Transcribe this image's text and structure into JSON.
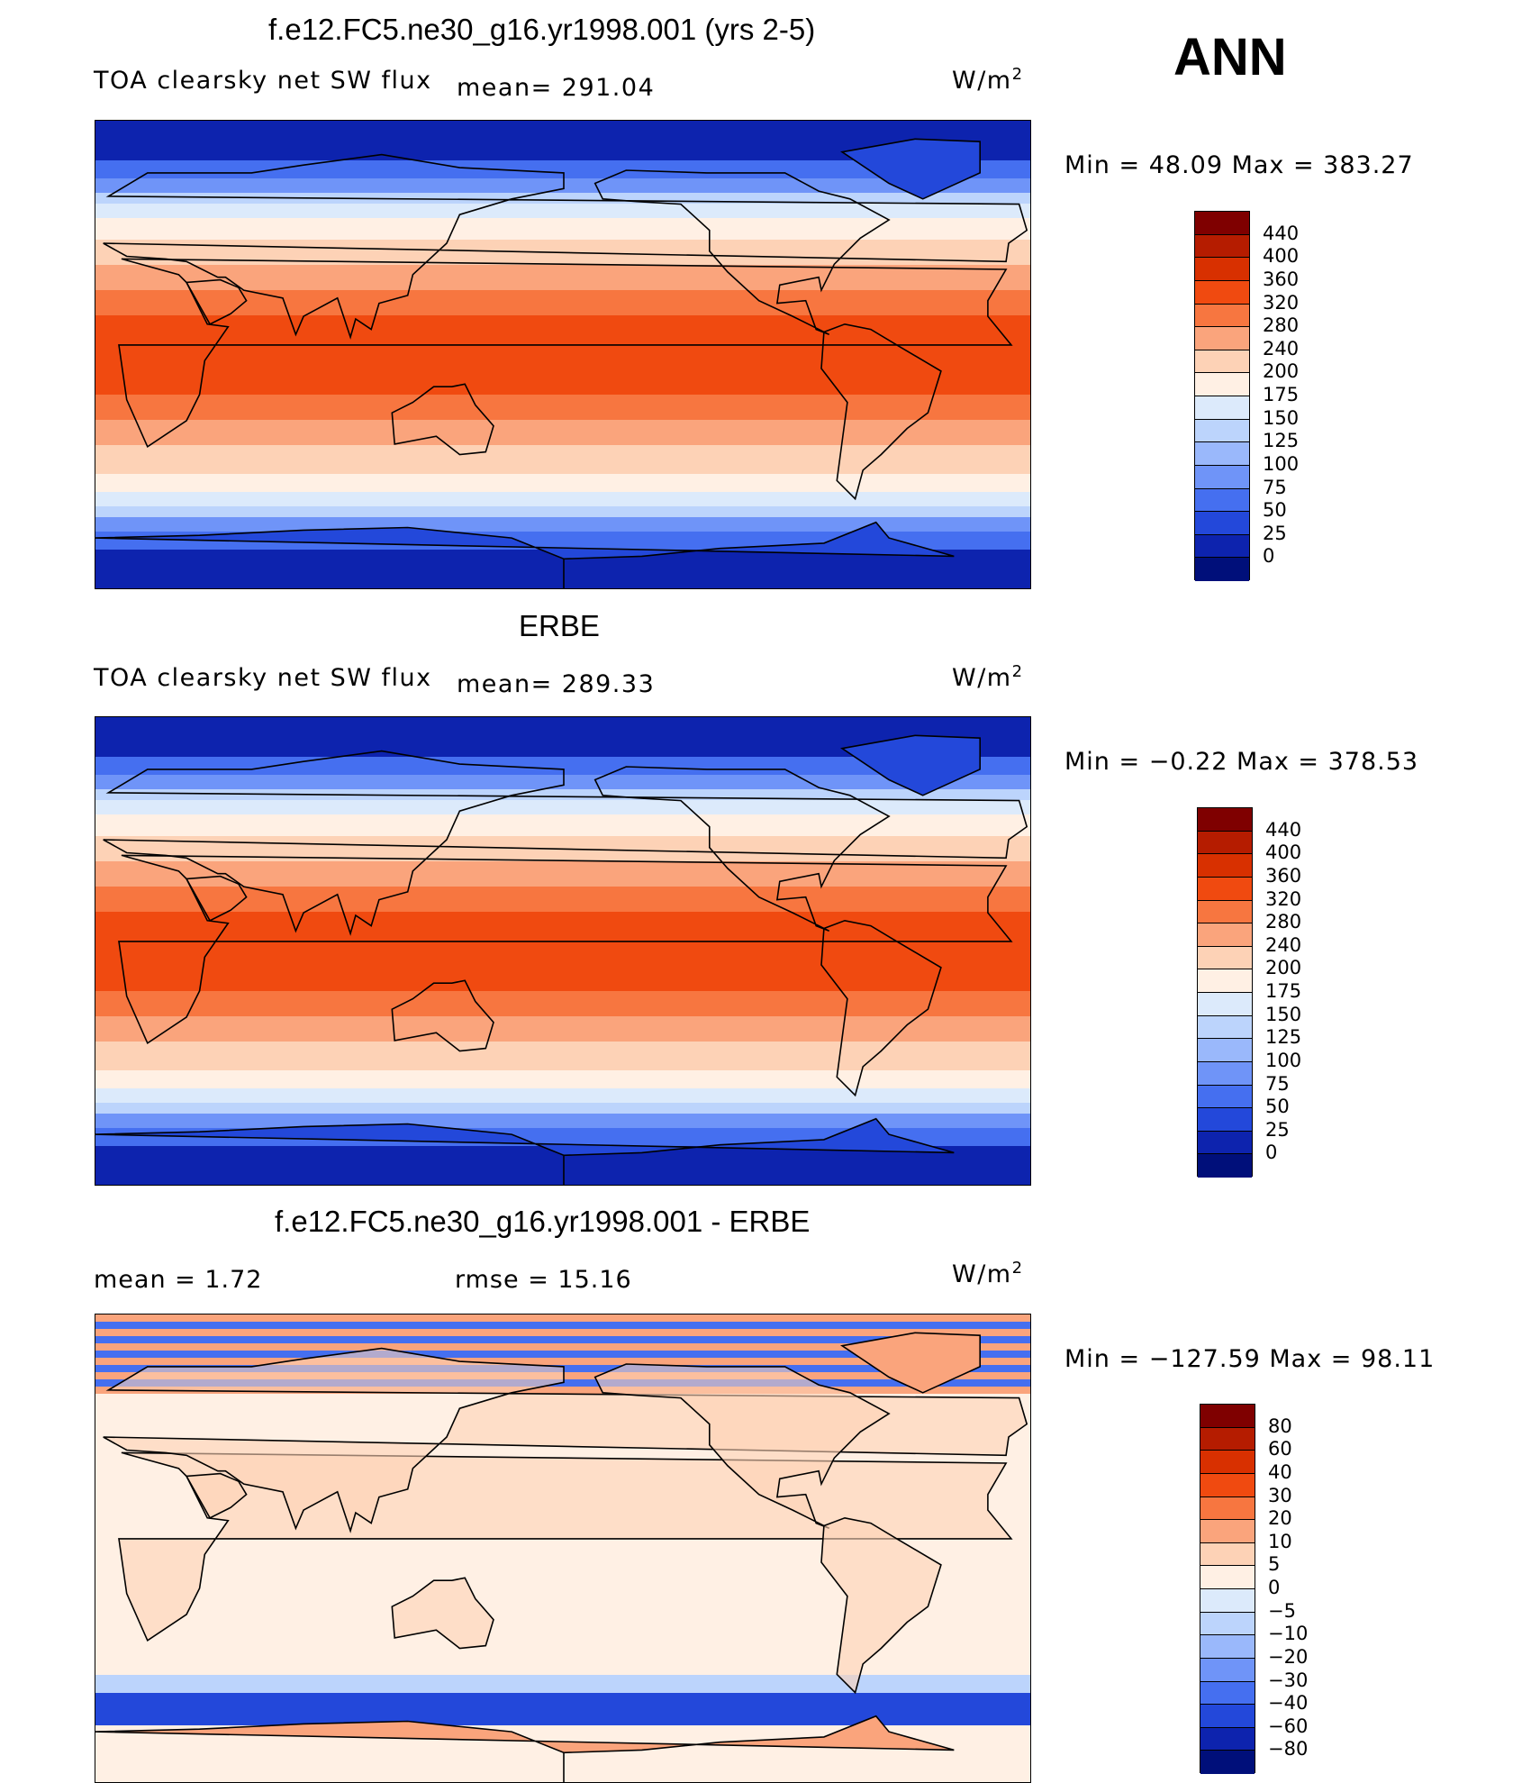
{
  "season": "ANN",
  "units": "W/m",
  "units_sup": "2",
  "panels": [
    {
      "title": "f.e12.FC5.ne30_g16.yr1998.001 (yrs 2-5)",
      "left_label": "TOA clearsky net SW flux",
      "mean_label": "mean= 291.04",
      "minmax": "Min =   48.09 Max = 383.27",
      "colorbar": {
        "labels": [
          "440",
          "400",
          "360",
          "320",
          "280",
          "240",
          "200",
          "175",
          "150",
          "125",
          "100",
          "75",
          "50",
          "25",
          "0"
        ],
        "colors": [
          "#7f0000",
          "#b51c00",
          "#d83000",
          "#f04a10",
          "#f77640",
          "#faa47c",
          "#fdd2b6",
          "#fff0e4",
          "#dceafb",
          "#bcd4fc",
          "#9ab8fb",
          "#6f94f8",
          "#456ff0",
          "#2348da",
          "#0d23ae",
          "#000f7a"
        ]
      },
      "field": "model"
    },
    {
      "title": "ERBE",
      "left_label": "TOA clearsky net SW flux",
      "mean_label": "mean= 289.33",
      "minmax": "Min =  −0.22 Max = 378.53",
      "colorbar": {
        "labels": [
          "440",
          "400",
          "360",
          "320",
          "280",
          "240",
          "200",
          "175",
          "150",
          "125",
          "100",
          "75",
          "50",
          "25",
          "0"
        ],
        "colors": [
          "#7f0000",
          "#b51c00",
          "#d83000",
          "#f04a10",
          "#f77640",
          "#faa47c",
          "#fdd2b6",
          "#fff0e4",
          "#dceafb",
          "#bcd4fc",
          "#9ab8fb",
          "#6f94f8",
          "#456ff0",
          "#2348da",
          "#0d23ae",
          "#000f7a"
        ]
      },
      "field": "obs"
    },
    {
      "title": "f.e12.FC5.ne30_g16.yr1998.001 - ERBE",
      "mean_label": "mean =     1.72",
      "rmse_label": "rmse =    15.16",
      "minmax": "Min = −127.59 Max =   98.11",
      "colorbar": {
        "labels": [
          "80",
          "60",
          "40",
          "30",
          "20",
          "10",
          "5",
          "0",
          "−5",
          "−10",
          "−20",
          "−30",
          "−40",
          "−60",
          "−80"
        ],
        "colors": [
          "#7f0000",
          "#b51c00",
          "#d83000",
          "#f04a10",
          "#f77640",
          "#faa47c",
          "#fdd2b6",
          "#fff0e4",
          "#dceafb",
          "#bcd4fc",
          "#9ab8fb",
          "#6f94f8",
          "#456ff0",
          "#2348da",
          "#0d23ae",
          "#000f7a"
        ]
      },
      "field": "diff"
    }
  ]
}
